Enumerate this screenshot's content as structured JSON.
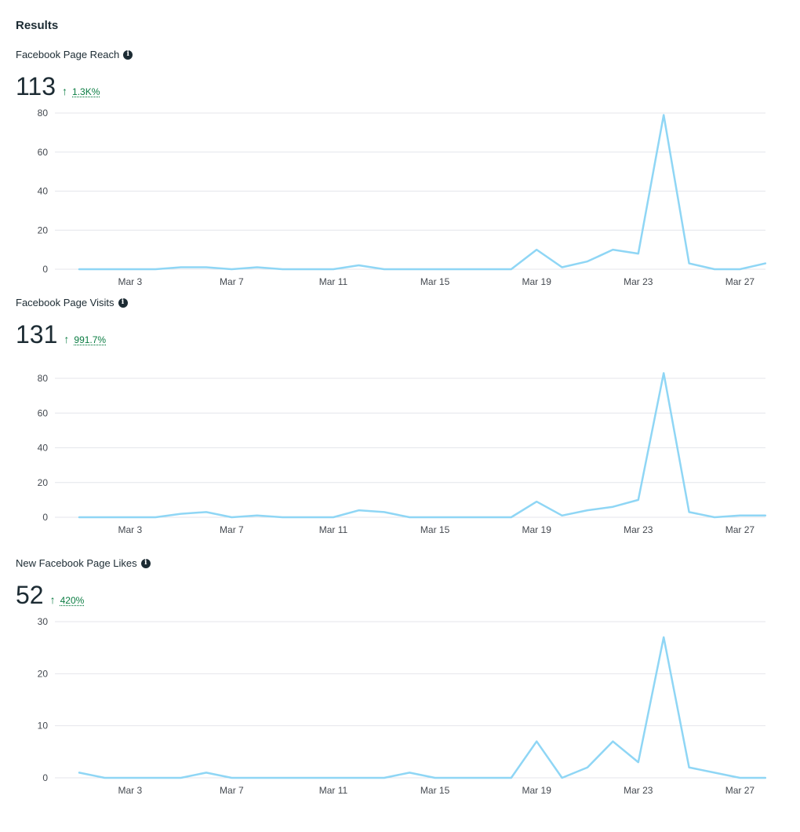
{
  "header": {
    "title": "Results"
  },
  "colors": {
    "line": "#8fd6f5",
    "positive": "#0a7c42",
    "grid": "#e4e6eb"
  },
  "icons": {
    "info": "info-icon",
    "trend": "arrow-up-icon"
  },
  "metrics": [
    {
      "label": "Facebook Page Reach",
      "value": "113",
      "change_arrow": "↑",
      "change": "1.3K%"
    },
    {
      "label": "Facebook Page Visits",
      "value": "131",
      "change_arrow": "↑",
      "change": "991.7%"
    },
    {
      "label": "New Facebook Page Likes",
      "value": "52",
      "change_arrow": "↑",
      "change": "420%"
    }
  ],
  "chart_data": [
    {
      "type": "line",
      "title": "Facebook Page Reach",
      "x": [
        "Mar 1",
        "Mar 2",
        "Mar 3",
        "Mar 4",
        "Mar 5",
        "Mar 6",
        "Mar 7",
        "Mar 8",
        "Mar 9",
        "Mar 10",
        "Mar 11",
        "Mar 12",
        "Mar 13",
        "Mar 14",
        "Mar 15",
        "Mar 16",
        "Mar 17",
        "Mar 18",
        "Mar 19",
        "Mar 20",
        "Mar 21",
        "Mar 22",
        "Mar 23",
        "Mar 24",
        "Mar 25",
        "Mar 26",
        "Mar 27",
        "Mar 28"
      ],
      "series": [
        {
          "values": [
            0,
            0,
            0,
            0,
            1,
            1,
            0,
            1,
            0,
            0,
            0,
            2,
            0,
            0,
            0,
            0,
            0,
            0,
            10,
            1,
            4,
            10,
            8,
            79,
            3,
            0,
            0,
            3
          ]
        }
      ],
      "xticks": [
        "Mar 3",
        "Mar 7",
        "Mar 11",
        "Mar 15",
        "Mar 19",
        "Mar 23",
        "Mar 27"
      ],
      "yticks": [
        "0",
        "20",
        "40",
        "60",
        "80"
      ],
      "ylim": [
        0,
        80
      ],
      "grid": true
    },
    {
      "type": "line",
      "title": "Facebook Page Visits",
      "x": [
        "Mar 1",
        "Mar 2",
        "Mar 3",
        "Mar 4",
        "Mar 5",
        "Mar 6",
        "Mar 7",
        "Mar 8",
        "Mar 9",
        "Mar 10",
        "Mar 11",
        "Mar 12",
        "Mar 13",
        "Mar 14",
        "Mar 15",
        "Mar 16",
        "Mar 17",
        "Mar 18",
        "Mar 19",
        "Mar 20",
        "Mar 21",
        "Mar 22",
        "Mar 23",
        "Mar 24",
        "Mar 25",
        "Mar 26",
        "Mar 27",
        "Mar 28"
      ],
      "series": [
        {
          "values": [
            0,
            0,
            0,
            0,
            2,
            3,
            0,
            1,
            0,
            0,
            0,
            4,
            3,
            0,
            0,
            0,
            0,
            0,
            9,
            1,
            4,
            6,
            10,
            83,
            3,
            0,
            1,
            1
          ]
        }
      ],
      "xticks": [
        "Mar 3",
        "Mar 7",
        "Mar 11",
        "Mar 15",
        "Mar 19",
        "Mar 23",
        "Mar 27"
      ],
      "yticks": [
        "0",
        "20",
        "40",
        "60",
        "80"
      ],
      "ylim": [
        0,
        80
      ],
      "grid": true
    },
    {
      "type": "line",
      "title": "New Facebook Page Likes",
      "x": [
        "Mar 1",
        "Mar 2",
        "Mar 3",
        "Mar 4",
        "Mar 5",
        "Mar 6",
        "Mar 7",
        "Mar 8",
        "Mar 9",
        "Mar 10",
        "Mar 11",
        "Mar 12",
        "Mar 13",
        "Mar 14",
        "Mar 15",
        "Mar 16",
        "Mar 17",
        "Mar 18",
        "Mar 19",
        "Mar 20",
        "Mar 21",
        "Mar 22",
        "Mar 23",
        "Mar 24",
        "Mar 25",
        "Mar 26",
        "Mar 27",
        "Mar 28"
      ],
      "series": [
        {
          "values": [
            1,
            0,
            0,
            0,
            0,
            1,
            0,
            0,
            0,
            0,
            0,
            0,
            0,
            1,
            0,
            0,
            0,
            0,
            7,
            0,
            2,
            7,
            3,
            27,
            2,
            1,
            0,
            0
          ]
        }
      ],
      "xticks": [
        "Mar 3",
        "Mar 7",
        "Mar 11",
        "Mar 15",
        "Mar 19",
        "Mar 23",
        "Mar 27"
      ],
      "yticks": [
        "0",
        "10",
        "20",
        "30"
      ],
      "ylim": [
        0,
        30
      ],
      "grid": true
    }
  ]
}
